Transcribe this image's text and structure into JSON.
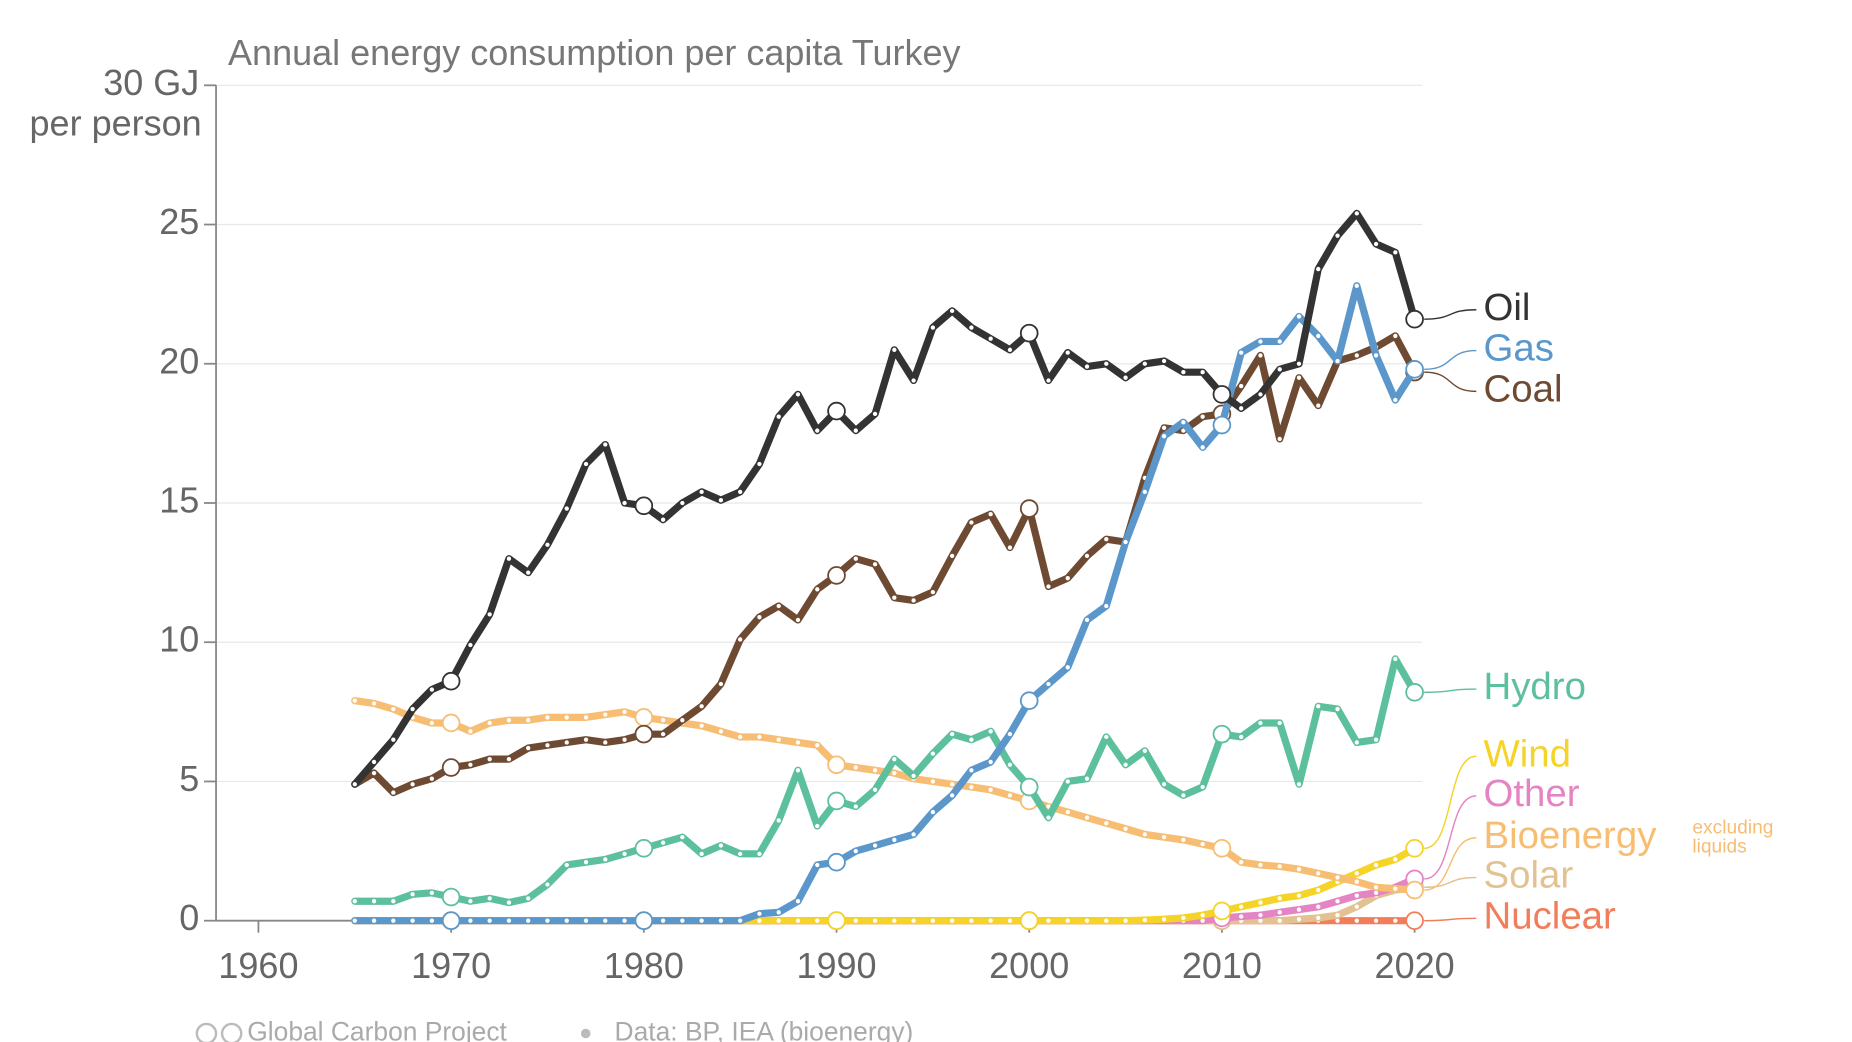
{
  "chart_data": {
    "type": "line",
    "title": "Annual energy consumption per capita Turkey",
    "y_unit_label": "per person",
    "footer": {
      "source": "Global Carbon Project",
      "data": "Data: BP, IEA (bioenergy)"
    },
    "xlim": [
      1957.8,
      2020.4
    ],
    "ylim": [
      0,
      30
    ],
    "xticks": [
      1960,
      1970,
      1980,
      1990,
      2000,
      2010,
      2020
    ],
    "yticks": [
      0,
      5,
      10,
      15,
      20,
      25,
      {
        "value": 30,
        "label": "30 GJ"
      }
    ],
    "grid": true,
    "x": [
      1965,
      1966,
      1967,
      1968,
      1969,
      1970,
      1971,
      1972,
      1973,
      1974,
      1975,
      1976,
      1977,
      1978,
      1979,
      1980,
      1981,
      1982,
      1983,
      1984,
      1985,
      1986,
      1987,
      1988,
      1989,
      1990,
      1991,
      1992,
      1993,
      1994,
      1995,
      1996,
      1997,
      1998,
      1999,
      2000,
      2001,
      2002,
      2003,
      2004,
      2005,
      2006,
      2007,
      2008,
      2009,
      2010,
      2011,
      2012,
      2013,
      2014,
      2015,
      2016,
      2017,
      2018,
      2019,
      2020
    ],
    "series": [
      {
        "name": "Nuclear",
        "color": "#f27d5a",
        "values": [
          0,
          0,
          0,
          0,
          0,
          0,
          0,
          0,
          0,
          0,
          0,
          0,
          0,
          0,
          0,
          0,
          0,
          0,
          0,
          0,
          0,
          0,
          0,
          0,
          0,
          0,
          0,
          0,
          0,
          0,
          0,
          0,
          0,
          0,
          0,
          0,
          0,
          0,
          0,
          0,
          0,
          0,
          0,
          0,
          0,
          0,
          0,
          0,
          0,
          0,
          0,
          0,
          0,
          0,
          0,
          0
        ]
      },
      {
        "name": "Solar",
        "color": "#e2c291",
        "values": [
          0,
          0,
          0,
          0,
          0,
          0,
          0,
          0,
          0,
          0,
          0,
          0,
          0,
          0,
          0,
          0,
          0,
          0,
          0,
          0,
          0,
          0,
          0,
          0,
          0,
          0,
          0,
          0,
          0,
          0,
          0,
          0,
          0,
          0,
          0,
          0,
          0,
          0,
          0,
          0,
          0,
          0,
          0,
          0,
          0,
          0,
          0,
          0,
          0,
          0.05,
          0.1,
          0.2,
          0.5,
          0.9,
          1.1,
          1.2
        ]
      },
      {
        "name": "Other",
        "color": "#e584c3",
        "values": [
          0,
          0,
          0,
          0,
          0,
          0,
          0,
          0,
          0,
          0,
          0,
          0,
          0,
          0,
          0,
          0,
          0,
          0,
          0,
          0,
          0,
          0,
          0,
          0,
          0,
          0,
          0,
          0,
          0,
          0,
          0,
          0,
          0,
          0,
          0,
          0,
          0,
          0,
          0,
          0,
          0,
          0,
          0,
          0,
          0,
          0.1,
          0.15,
          0.2,
          0.3,
          0.4,
          0.5,
          0.7,
          0.9,
          1.0,
          1.2,
          1.5
        ]
      },
      {
        "name": "Wind",
        "color": "#f5d327",
        "values": [
          0,
          0,
          0,
          0,
          0,
          0,
          0,
          0,
          0,
          0,
          0,
          0,
          0,
          0,
          0,
          0,
          0,
          0,
          0,
          0,
          0,
          0,
          0,
          0,
          0,
          0,
          0,
          0,
          0,
          0,
          0,
          0,
          0,
          0,
          0,
          0,
          0,
          0,
          0,
          0,
          0,
          0.02,
          0.05,
          0.1,
          0.2,
          0.35,
          0.5,
          0.65,
          0.8,
          0.9,
          1.1,
          1.4,
          1.7,
          2.0,
          2.2,
          2.6
        ]
      },
      {
        "name": "Bioenergy",
        "note_lines": [
          "excluding",
          "liquids"
        ],
        "color": "#f7bd73",
        "values": [
          7.9,
          7.8,
          7.6,
          7.3,
          7.1,
          7.1,
          6.8,
          7.1,
          7.2,
          7.2,
          7.3,
          7.3,
          7.3,
          7.4,
          7.5,
          7.3,
          7.2,
          7.1,
          7.0,
          6.8,
          6.6,
          6.6,
          6.5,
          6.4,
          6.3,
          5.6,
          5.5,
          5.4,
          5.3,
          5.1,
          5.0,
          4.9,
          4.8,
          4.7,
          4.5,
          4.3,
          4.1,
          3.9,
          3.7,
          3.5,
          3.3,
          3.1,
          3.0,
          2.9,
          2.75,
          2.6,
          2.1,
          2.0,
          1.95,
          1.85,
          1.7,
          1.55,
          1.4,
          1.2,
          1.15,
          1.1
        ]
      },
      {
        "name": "Hydro",
        "color": "#5cc09c",
        "values": [
          0.7,
          0.7,
          0.7,
          0.95,
          1.0,
          0.85,
          0.7,
          0.8,
          0.65,
          0.8,
          1.3,
          2.0,
          2.1,
          2.2,
          2.4,
          2.6,
          2.8,
          3.0,
          2.4,
          2.7,
          2.4,
          2.4,
          3.6,
          5.4,
          3.4,
          4.3,
          4.1,
          4.7,
          5.8,
          5.2,
          6.0,
          6.7,
          6.5,
          6.8,
          5.6,
          4.8,
          3.7,
          5.0,
          5.1,
          6.6,
          5.6,
          6.1,
          4.9,
          4.5,
          4.8,
          6.7,
          6.6,
          7.1,
          7.1,
          4.9,
          7.7,
          7.6,
          6.4,
          6.5,
          9.4,
          8.2
        ]
      },
      {
        "name": "Coal",
        "color": "#6e4a32",
        "values": [
          4.9,
          5.3,
          4.6,
          4.9,
          5.1,
          5.5,
          5.6,
          5.8,
          5.8,
          6.2,
          6.3,
          6.4,
          6.5,
          6.4,
          6.5,
          6.7,
          6.7,
          7.2,
          7.7,
          8.5,
          10.1,
          10.9,
          11.3,
          10.8,
          11.9,
          12.4,
          13.0,
          12.8,
          11.6,
          11.5,
          11.8,
          13.1,
          14.3,
          14.6,
          13.4,
          14.8,
          12.0,
          12.3,
          13.1,
          13.7,
          13.6,
          15.9,
          17.7,
          17.6,
          18.1,
          18.2,
          19.2,
          20.3,
          17.3,
          19.5,
          18.5,
          20.1,
          20.3,
          20.6,
          21.0,
          19.7
        ]
      },
      {
        "name": "Gas",
        "color": "#5b97cb",
        "values": [
          0,
          0,
          0,
          0,
          0,
          0,
          0,
          0,
          0,
          0,
          0,
          0,
          0,
          0,
          0,
          0,
          0,
          0,
          0,
          0,
          0,
          0.25,
          0.3,
          0.7,
          2.0,
          2.1,
          2.5,
          2.7,
          2.9,
          3.1,
          3.9,
          4.5,
          5.4,
          5.7,
          6.7,
          7.9,
          8.5,
          9.1,
          10.8,
          11.3,
          13.6,
          15.4,
          17.4,
          17.9,
          17.0,
          17.8,
          20.4,
          20.8,
          20.8,
          21.7,
          21.0,
          20.1,
          22.8,
          20.3,
          18.7,
          19.8
        ]
      },
      {
        "name": "Oil",
        "color": "#333333",
        "values": [
          4.9,
          5.7,
          6.5,
          7.6,
          8.3,
          8.6,
          9.9,
          11.0,
          13.0,
          12.5,
          13.5,
          14.8,
          16.4,
          17.1,
          15.0,
          14.9,
          14.4,
          15.0,
          15.4,
          15.1,
          15.4,
          16.4,
          18.1,
          18.9,
          17.6,
          18.3,
          17.6,
          18.2,
          20.5,
          19.4,
          21.3,
          21.9,
          21.3,
          20.9,
          20.5,
          21.1,
          19.4,
          20.4,
          19.9,
          20.0,
          19.5,
          20.0,
          20.1,
          19.7,
          19.7,
          18.9,
          18.4,
          18.9,
          19.8,
          20.0,
          23.4,
          24.6,
          25.4,
          24.3,
          24.0,
          21.6
        ]
      }
    ]
  }
}
